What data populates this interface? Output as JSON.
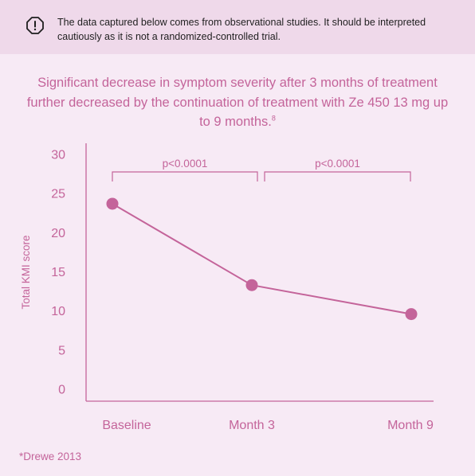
{
  "notice": {
    "icon": "alert-octagon-icon",
    "text": "The data captured below comes from observational studies. It should be interpreted cautiously as it is not a randomized-controlled trial."
  },
  "headline": {
    "text": "Significant decrease in symptom severity after 3 months of treatment further decreased by the continuation of treatment with Ze 450 13 mg up to 9 months.",
    "superscript": "8"
  },
  "chart_data": {
    "type": "line",
    "categories": [
      "Baseline",
      "Month 3",
      "Month 9"
    ],
    "values": [
      23.7,
      13.3,
      9.6
    ],
    "ylabel": "Total KMI score",
    "ylim": [
      0,
      30
    ],
    "yticks": [
      0,
      5,
      10,
      15,
      20,
      25,
      30
    ],
    "grid": false,
    "annotations": [
      {
        "from": "Baseline",
        "to": "Month 3",
        "label": "p<0.0001"
      },
      {
        "from": "Month 3",
        "to": "Month 9",
        "label": "p<0.0001"
      }
    ],
    "colors": {
      "line": "#c4649a",
      "text": "#c4649a",
      "axis": "#c4649a"
    }
  },
  "footnote": "*Drewe 2013"
}
